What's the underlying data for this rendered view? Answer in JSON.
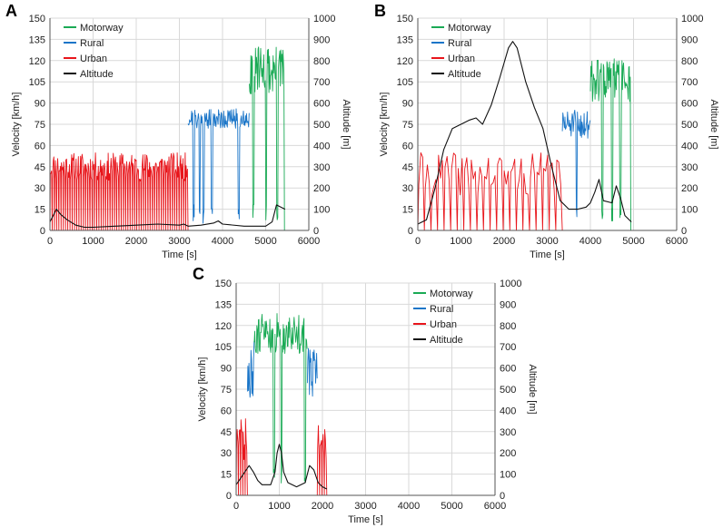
{
  "colors": {
    "motorway": "#1aaa55",
    "rural": "#1a75c8",
    "urban": "#e8151b",
    "altitude": "#111111",
    "grid": "#d9d9d9"
  },
  "chart_data": [
    {
      "panel_label": "A",
      "type": "line",
      "xlabel": "Time [s]",
      "ylabel": "Velocity [km/h]",
      "y2label": "Altitude [m]",
      "xlim": [
        0,
        6000
      ],
      "ylim": [
        0,
        150
      ],
      "y2lim": [
        0,
        1000
      ],
      "xticks": [
        "0",
        "1000",
        "2000",
        "3000",
        "4000",
        "5000",
        "6000"
      ],
      "yticks": [
        "0",
        "15",
        "30",
        "45",
        "60",
        "75",
        "90",
        "105",
        "120",
        "135",
        "150"
      ],
      "y2ticks": [
        "0",
        "100",
        "200",
        "300",
        "400",
        "500",
        "600",
        "700",
        "800",
        "900",
        "1000"
      ],
      "grid": true,
      "legend": [
        "Motorway",
        "Rural",
        "Urban",
        "Altitude"
      ],
      "legend_position": "top-left",
      "series": [
        {
          "name": "Urban",
          "axis": "left",
          "kind": "stops",
          "x_range": [
            0,
            3200
          ],
          "level": [
            35,
            55
          ],
          "stops": 62,
          "seed": 11
        },
        {
          "name": "Rural",
          "axis": "left",
          "kind": "noisy",
          "x_range": [
            3200,
            4620
          ],
          "level": [
            72,
            86
          ],
          "dips": [
            3330,
            3470,
            3560,
            3750,
            4380
          ],
          "seed": 21
        },
        {
          "name": "Motorway",
          "axis": "left",
          "kind": "noisy",
          "x_range": [
            4620,
            5450
          ],
          "level": [
            95,
            130
          ],
          "dips": [
            4720,
            5010,
            5270,
            5450
          ],
          "seed": 31
        },
        {
          "name": "Altitude",
          "axis": "right",
          "x": [
            0,
            150,
            250,
            400,
            600,
            800,
            1000,
            1500,
            2000,
            2500,
            3000,
            3100,
            3200,
            3500,
            3800,
            3900,
            4000,
            4500,
            5000,
            5150,
            5250,
            5350,
            5450
          ],
          "y": [
            40,
            100,
            75,
            50,
            25,
            15,
            15,
            20,
            25,
            30,
            25,
            30,
            20,
            25,
            35,
            45,
            30,
            20,
            20,
            40,
            120,
            110,
            100
          ]
        }
      ]
    },
    {
      "panel_label": "B",
      "type": "line",
      "xlabel": "Time [s]",
      "ylabel": "Velocity [km/h]",
      "y2label": "Altitude [m]",
      "xlim": [
        0,
        6000
      ],
      "ylim": [
        0,
        150
      ],
      "y2lim": [
        0,
        1000
      ],
      "xticks": [
        "0",
        "1000",
        "2000",
        "3000",
        "4000",
        "5000",
        "6000"
      ],
      "yticks": [
        "0",
        "15",
        "30",
        "45",
        "60",
        "75",
        "90",
        "105",
        "120",
        "135",
        "150"
      ],
      "y2ticks": [
        "0",
        "100",
        "200",
        "300",
        "400",
        "500",
        "600",
        "700",
        "800",
        "900",
        "1000"
      ],
      "grid": true,
      "legend": [
        "Motorway",
        "Rural",
        "Urban",
        "Altitude"
      ],
      "legend_position": "top-left",
      "series": [
        {
          "name": "Urban",
          "axis": "left",
          "kind": "stops",
          "x_range": [
            0,
            3350
          ],
          "level": [
            25,
            55
          ],
          "stops": 22,
          "seed": 41
        },
        {
          "name": "Rural",
          "axis": "left",
          "kind": "noisy",
          "x_range": [
            3350,
            4000
          ],
          "level": [
            65,
            85
          ],
          "dips": [
            3680
          ],
          "seed": 51
        },
        {
          "name": "Motorway",
          "axis": "left",
          "kind": "noisy",
          "x_range": [
            4000,
            4950
          ],
          "level": [
            90,
            122
          ],
          "dips": [
            4280,
            4500,
            4700,
            4950
          ],
          "seed": 61
        },
        {
          "name": "Altitude",
          "axis": "right",
          "x": [
            0,
            200,
            400,
            600,
            800,
            1000,
            1200,
            1350,
            1500,
            1700,
            1900,
            2100,
            2200,
            2300,
            2500,
            2700,
            2900,
            3100,
            3300,
            3500,
            3700,
            3900,
            4000,
            4100,
            4200,
            4300,
            4500,
            4600,
            4700,
            4800,
            4950
          ],
          "y": [
            30,
            50,
            200,
            380,
            480,
            500,
            520,
            530,
            500,
            590,
            720,
            860,
            890,
            860,
            700,
            580,
            480,
            300,
            140,
            100,
            100,
            110,
            130,
            180,
            240,
            140,
            130,
            210,
            150,
            70,
            40
          ]
        }
      ]
    },
    {
      "panel_label": "C",
      "type": "line",
      "xlabel": "Time [s]",
      "ylabel": "Velocity [km/h]",
      "y2label": "Altitude [m]",
      "xlim": [
        0,
        6000
      ],
      "ylim": [
        0,
        150
      ],
      "y2lim": [
        0,
        1000
      ],
      "xticks": [
        "0",
        "1000",
        "2000",
        "3000",
        "4000",
        "5000",
        "6000"
      ],
      "yticks": [
        "0",
        "15",
        "30",
        "45",
        "60",
        "75",
        "90",
        "105",
        "120",
        "135",
        "150"
      ],
      "y2ticks": [
        "0",
        "100",
        "200",
        "300",
        "400",
        "500",
        "600",
        "700",
        "800",
        "900",
        "1000"
      ],
      "grid": true,
      "legend": [
        "Motorway",
        "Rural",
        "Urban",
        "Altitude"
      ],
      "legend_position": "top-right",
      "series": [
        {
          "name": "Urban",
          "axis": "left",
          "kind": "stops",
          "x_range": [
            0,
            260
          ],
          "level": [
            25,
            55
          ],
          "stops": 5,
          "seed": 71
        },
        {
          "name": "Urban",
          "axis": "left",
          "kind": "stops",
          "x_range": [
            1880,
            2100
          ],
          "level": [
            25,
            55
          ],
          "stops": 4,
          "seed": 72
        },
        {
          "name": "Rural",
          "axis": "left",
          "kind": "noisy",
          "x_range": [
            260,
            420
          ],
          "level": [
            60,
            110
          ],
          "dips": [],
          "seed": 81
        },
        {
          "name": "Rural",
          "axis": "left",
          "kind": "noisy",
          "x_range": [
            1650,
            1880
          ],
          "level": [
            70,
            105
          ],
          "dips": [],
          "seed": 82
        },
        {
          "name": "Motorway",
          "axis": "left",
          "kind": "noisy",
          "x_range": [
            420,
            1650
          ],
          "level": [
            100,
            130
          ],
          "dips": [
            880,
            1050,
            1600
          ],
          "seed": 91
        },
        {
          "name": "Altitude",
          "axis": "right",
          "x": [
            0,
            100,
            200,
            300,
            400,
            500,
            600,
            700,
            800,
            900,
            950,
            1000,
            1050,
            1100,
            1200,
            1400,
            1600,
            1700,
            1800,
            1900,
            2000,
            2100
          ],
          "y": [
            50,
            80,
            110,
            140,
            110,
            70,
            50,
            50,
            50,
            110,
            200,
            240,
            200,
            110,
            60,
            40,
            60,
            140,
            120,
            60,
            40,
            30
          ]
        }
      ]
    }
  ]
}
